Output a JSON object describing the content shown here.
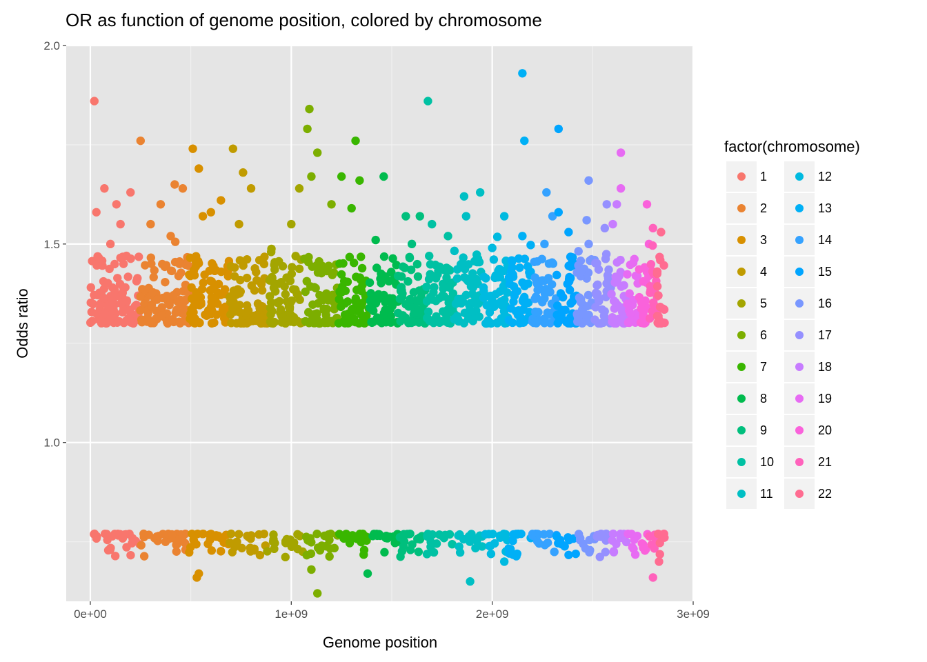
{
  "chart_data": {
    "type": "scatter",
    "title": "OR as function of genome position, colored by chromosome",
    "xlabel": "Genome position",
    "ylabel": "Odds ratio",
    "xlim": [
      -120000000,
      3000000000
    ],
    "ylim": [
      0.6,
      2.0
    ],
    "x_ticks": [
      {
        "value": 0,
        "label": "0e+00"
      },
      {
        "value": 1000000000,
        "label": "1e+09"
      },
      {
        "value": 2000000000,
        "label": "2e+09"
      },
      {
        "value": 3000000000,
        "label": "3e+09"
      }
    ],
    "y_ticks": [
      {
        "value": 1.0,
        "label": "1.0"
      },
      {
        "value": 1.5,
        "label": "1.5"
      },
      {
        "value": 2.0,
        "label": "2.0"
      }
    ],
    "grid": true,
    "background": "#e5e5e5",
    "legend": {
      "title": "factor(chromosome)",
      "placement": "right",
      "columns": 2
    },
    "series": [
      {
        "name": "1",
        "color": "#F8766D",
        "range": [
          0,
          248000000
        ],
        "points": [
          [
            20000000,
            1.86
          ],
          [
            70000000,
            1.64
          ],
          [
            130000000,
            1.6
          ],
          [
            200000000,
            1.63
          ],
          [
            30000000,
            1.58
          ],
          [
            150000000,
            1.55
          ],
          [
            100000000,
            1.5
          ],
          [
            180000000,
            1.47
          ]
        ]
      },
      {
        "name": "2",
        "color": "#EA8331",
        "range": [
          248000000,
          490000000
        ],
        "points": [
          [
            250000000,
            1.76
          ],
          [
            420000000,
            1.65
          ],
          [
            350000000,
            1.6
          ],
          [
            460000000,
            1.64
          ],
          [
            300000000,
            1.55
          ],
          [
            400000000,
            1.52
          ]
        ]
      },
      {
        "name": "3",
        "color": "#D89000",
        "range": [
          490000000,
          690000000
        ],
        "points": [
          [
            510000000,
            1.74
          ],
          [
            540000000,
            1.69
          ],
          [
            650000000,
            1.61
          ],
          [
            600000000,
            1.58
          ],
          [
            560000000,
            1.57
          ],
          [
            530000000,
            0.66
          ],
          [
            540000000,
            0.67
          ]
        ]
      },
      {
        "name": "4",
        "color": "#C09B00",
        "range": [
          690000000,
          880000000
        ],
        "points": [
          [
            710000000,
            1.74
          ],
          [
            760000000,
            1.68
          ],
          [
            800000000,
            1.64
          ],
          [
            740000000,
            1.55
          ]
        ]
      },
      {
        "name": "5",
        "color": "#A3A500",
        "range": [
          880000000,
          1060000000
        ],
        "points": [
          [
            1040000000,
            1.64
          ],
          [
            1000000000,
            1.55
          ],
          [
            900000000,
            1.48
          ]
        ]
      },
      {
        "name": "6",
        "color": "#7CAE00",
        "range": [
          1060000000,
          1230000000
        ],
        "points": [
          [
            1090000000,
            1.84
          ],
          [
            1080000000,
            1.79
          ],
          [
            1130000000,
            1.73
          ],
          [
            1100000000,
            1.67
          ],
          [
            1200000000,
            1.6
          ],
          [
            1130000000,
            0.62
          ],
          [
            1100000000,
            0.68
          ]
        ]
      },
      {
        "name": "7",
        "color": "#39B600",
        "range": [
          1230000000,
          1390000000
        ],
        "points": [
          [
            1320000000,
            1.76
          ],
          [
            1250000000,
            1.67
          ],
          [
            1340000000,
            1.66
          ],
          [
            1300000000,
            1.59
          ]
        ]
      },
      {
        "name": "8",
        "color": "#00BB4E",
        "range": [
          1390000000,
          1530000000
        ],
        "points": [
          [
            1460000000,
            1.67
          ],
          [
            1420000000,
            1.51
          ],
          [
            1380000000,
            0.67
          ]
        ]
      },
      {
        "name": "9",
        "color": "#00BF7D",
        "range": [
          1530000000,
          1670000000
        ],
        "points": [
          [
            1640000000,
            1.57
          ],
          [
            1570000000,
            1.57
          ],
          [
            1600000000,
            1.5
          ]
        ]
      },
      {
        "name": "10",
        "color": "#00C1A3",
        "range": [
          1670000000,
          1810000000
        ],
        "points": [
          [
            1680000000,
            1.86
          ],
          [
            1700000000,
            1.55
          ],
          [
            1780000000,
            1.52
          ]
        ]
      },
      {
        "name": "11",
        "color": "#00BFC4",
        "range": [
          1810000000,
          1950000000
        ],
        "points": [
          [
            1860000000,
            1.62
          ],
          [
            1940000000,
            1.63
          ],
          [
            1870000000,
            1.57
          ],
          [
            1890000000,
            0.65
          ]
        ]
      },
      {
        "name": "12",
        "color": "#00BAE0",
        "range": [
          1950000000,
          2080000000
        ],
        "points": [
          [
            2060000000,
            1.57
          ],
          [
            2000000000,
            1.49
          ],
          [
            2060000000,
            0.7
          ]
        ]
      },
      {
        "name": "13",
        "color": "#00B0F6",
        "range": [
          2080000000,
          2200000000
        ],
        "points": [
          [
            2150000000,
            1.93
          ],
          [
            2160000000,
            1.76
          ],
          [
            2150000000,
            1.52
          ]
        ]
      },
      {
        "name": "14",
        "color": "#35A2FF",
        "range": [
          2200000000,
          2320000000
        ],
        "points": [
          [
            2270000000,
            1.63
          ],
          [
            2300000000,
            1.57
          ],
          [
            2260000000,
            1.5
          ]
        ]
      },
      {
        "name": "15",
        "color": "#00A5FF",
        "range": [
          2320000000,
          2420000000
        ],
        "points": [
          [
            2330000000,
            1.79
          ],
          [
            2330000000,
            1.58
          ],
          [
            2380000000,
            1.53
          ]
        ]
      },
      {
        "name": "16",
        "color": "#7997FF",
        "range": [
          2420000000,
          2510000000
        ],
        "points": [
          [
            2480000000,
            1.66
          ],
          [
            2470000000,
            1.56
          ],
          [
            2480000000,
            1.5
          ]
        ]
      },
      {
        "name": "17",
        "color": "#9590FF",
        "range": [
          2510000000,
          2590000000
        ],
        "points": [
          [
            2570000000,
            1.6
          ],
          [
            2560000000,
            1.54
          ]
        ]
      },
      {
        "name": "18",
        "color": "#C77CFF",
        "range": [
          2590000000,
          2670000000
        ],
        "points": [
          [
            2620000000,
            1.6
          ],
          [
            2600000000,
            1.55
          ]
        ]
      },
      {
        "name": "19",
        "color": "#E76BF3",
        "range": [
          2670000000,
          2730000000
        ],
        "points": [
          [
            2640000000,
            1.73
          ],
          [
            2640000000,
            1.64
          ]
        ]
      },
      {
        "name": "20",
        "color": "#FA62DB",
        "range": [
          2730000000,
          2780000000
        ],
        "points": [
          [
            2770000000,
            1.6
          ],
          [
            2780000000,
            1.5
          ]
        ]
      },
      {
        "name": "21",
        "color": "#FF62BC",
        "range": [
          2780000000,
          2820000000
        ],
        "points": [
          [
            2800000000,
            1.54
          ],
          [
            2800000000,
            0.66
          ]
        ]
      },
      {
        "name": "22",
        "color": "#FF6C91",
        "range": [
          2820000000,
          2860000000
        ],
        "points": [
          [
            2840000000,
            1.53
          ],
          [
            2830000000,
            0.7
          ]
        ]
      }
    ]
  }
}
